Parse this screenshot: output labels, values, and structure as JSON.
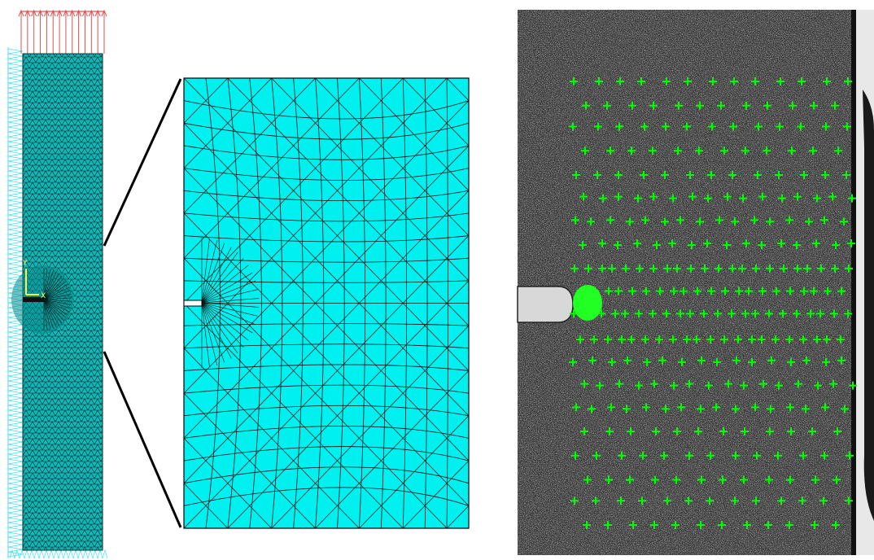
{
  "figure": {
    "panels": [
      {
        "id": "full-mesh",
        "description_visible": false
      },
      {
        "id": "mesh-zoom",
        "description_visible": false
      },
      {
        "id": "speckle-photo",
        "description_visible": false
      }
    ],
    "axis_triad": {
      "y_label": "Y",
      "x_label": "X"
    },
    "colors": {
      "mesh_fill": "#00f0f0",
      "mesh_lines": "#0a0a0a",
      "load_arrows": "#e05050",
      "support_symbols": "#40e0f0",
      "dic_markers": "#00ff00",
      "speckle_base": "#3a3a3a"
    },
    "annotations": {
      "load_arrow_count": 14,
      "dic_marker_rows": 20
    }
  }
}
